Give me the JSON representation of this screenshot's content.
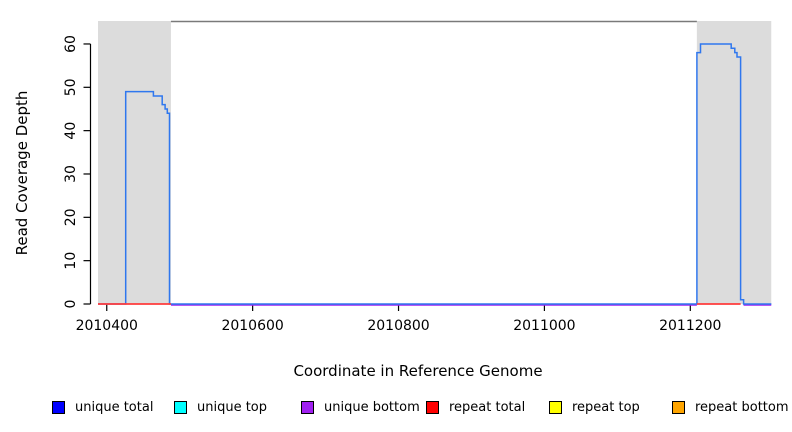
{
  "figure": {
    "background": "#FFFFFF",
    "text_color": "#000000"
  },
  "chart_data": {
    "type": "line",
    "title": "",
    "xlabel": "Coordinate in Reference Genome",
    "ylabel": "Read Coverage Depth",
    "xlim": [
      2010388,
      2011312
    ],
    "ylim": [
      0,
      65.3
    ],
    "x_ticks": [
      2010400,
      2010600,
      2010800,
      2011000,
      2011200
    ],
    "y_ticks": [
      0,
      10,
      20,
      30,
      40,
      50,
      60
    ],
    "grid": false,
    "shaded_regions": {
      "color": "#DCDCDC",
      "x_ranges": [
        [
          2010388,
          2010488
        ],
        [
          2011209,
          2011311
        ]
      ]
    },
    "top_line": {
      "color": "#7A7A7A",
      "x1": 2010488,
      "x2": 2011209
    },
    "series": [
      {
        "name": "unique total coverage",
        "color": "#2F77EE",
        "width": 1.5,
        "points": [
          [
            2010388,
            0
          ],
          [
            2010426,
            0
          ],
          [
            2010426,
            49
          ],
          [
            2010464,
            49
          ],
          [
            2010464,
            48
          ],
          [
            2010476,
            48
          ],
          [
            2010476,
            46
          ],
          [
            2010480,
            46
          ],
          [
            2010480,
            45
          ],
          [
            2010483,
            45
          ],
          [
            2010483,
            44
          ],
          [
            2010486,
            44
          ],
          [
            2010486,
            0
          ],
          [
            2011209,
            0
          ],
          [
            2011209,
            58
          ],
          [
            2011214,
            58
          ],
          [
            2011214,
            60
          ],
          [
            2011256,
            60
          ],
          [
            2011256,
            59
          ],
          [
            2011261,
            59
          ],
          [
            2011261,
            58
          ],
          [
            2011264,
            58
          ],
          [
            2011264,
            57
          ],
          [
            2011269,
            57
          ],
          [
            2011269,
            1
          ],
          [
            2011273,
            1
          ],
          [
            2011273,
            0
          ],
          [
            2011311,
            0
          ]
        ]
      }
    ],
    "baseline_segments": [
      {
        "name": "unique bottom baseline",
        "color": "#A020F0",
        "width": 2.2,
        "layer": "under",
        "x1": 2010488,
        "x2": 2011209,
        "y": 0
      },
      {
        "name": "unique bottom baseline right",
        "color": "#A020F0",
        "width": 2.2,
        "layer": "under",
        "x1": 2011273,
        "x2": 2011311,
        "y": 0
      },
      {
        "name": "repeat total baseline left",
        "color": "#FF3B3B",
        "width": 1.7,
        "layer": "over",
        "x1": 2010388,
        "x2": 2010488,
        "y": 0
      },
      {
        "name": "repeat total baseline right",
        "color": "#FF3B3B",
        "width": 1.7,
        "layer": "over",
        "x1": 2011209,
        "x2": 2011269,
        "y": 0
      }
    ],
    "legend": [
      {
        "label": "unique total",
        "color": "#0000FF"
      },
      {
        "label": "unique top",
        "color": "#00FFFF"
      },
      {
        "label": "unique bottom",
        "color": "#A020F0"
      },
      {
        "label": "repeat total",
        "color": "#FF0000"
      },
      {
        "label": "repeat top",
        "color": "#FFFF00"
      },
      {
        "label": "repeat bottom",
        "color": "#FFA500"
      }
    ],
    "legend_position": "bottom"
  }
}
